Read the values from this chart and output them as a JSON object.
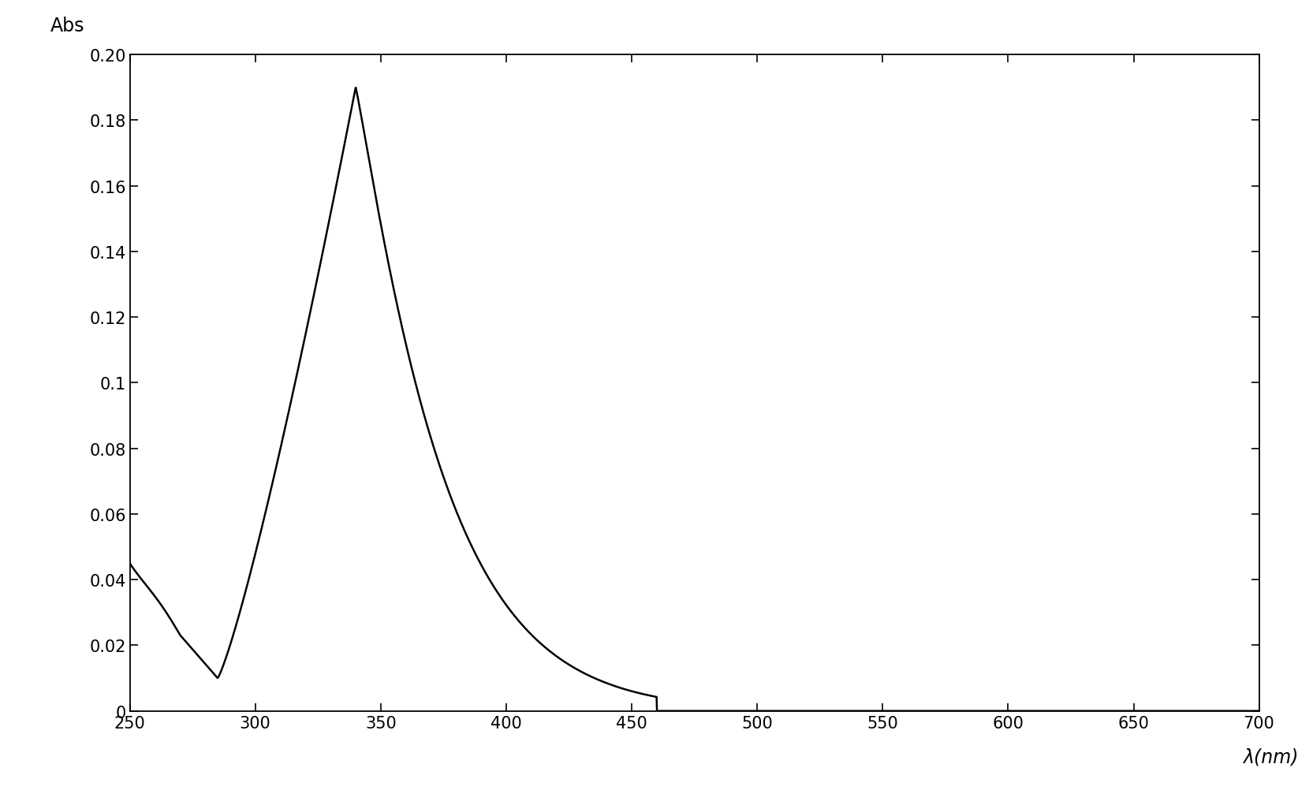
{
  "title": "",
  "xlabel": "λ(nm)",
  "ylabel": "Abs",
  "xlim": [
    250,
    700
  ],
  "ylim": [
    0,
    0.2
  ],
  "xticks": [
    250,
    300,
    350,
    400,
    450,
    500,
    550,
    600,
    650,
    700
  ],
  "yticks": [
    0,
    0.02,
    0.04,
    0.06,
    0.08,
    0.1,
    0.12,
    0.14,
    0.16,
    0.18,
    0.2
  ],
  "line_color": "#000000",
  "line_width": 1.8,
  "background_color": "#ffffff",
  "figsize": [
    16.46,
    10.03
  ],
  "dpi": 100
}
